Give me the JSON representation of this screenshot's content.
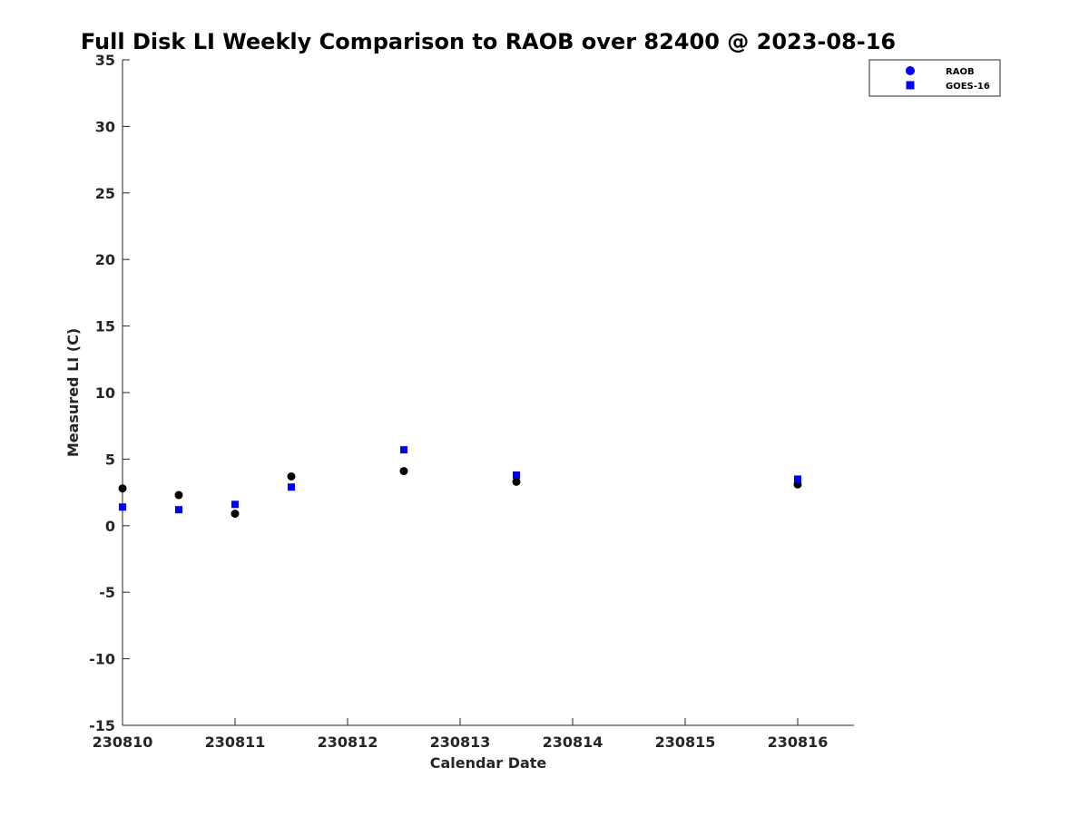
{
  "chart_data": {
    "type": "scatter",
    "title": "Full Disk LI Weekly Comparison to RAOB over 82400 @ 2023-08-16",
    "xlabel": "Calendar Date",
    "ylabel": "Measured LI (C)",
    "xlim": [
      230810,
      230816.5
    ],
    "ylim": [
      -15,
      35
    ],
    "x_ticks": [
      230810,
      230811,
      230812,
      230813,
      230814,
      230815,
      230816
    ],
    "x_tick_labels": [
      "230810",
      "230811",
      "230812",
      "230813",
      "230814",
      "230815",
      "230816"
    ],
    "y_ticks": [
      -15,
      -10,
      -5,
      0,
      5,
      10,
      15,
      20,
      25,
      30,
      35
    ],
    "y_tick_labels": [
      "-15",
      "-10",
      "-5",
      "0",
      "5",
      "10",
      "15",
      "20",
      "25",
      "30",
      "35"
    ],
    "grid": false,
    "legend_position": "top-right",
    "series": [
      {
        "name": "RAOB",
        "marker": "circle",
        "color": "#000000",
        "legend_color": "#0000ff",
        "x": [
          230810,
          230810.5,
          230811,
          230811.5,
          230812.5,
          230813.5,
          230816
        ],
        "y": [
          2.8,
          2.3,
          0.9,
          3.7,
          4.1,
          3.3,
          3.1
        ]
      },
      {
        "name": "GOES-16",
        "marker": "square",
        "color": "#0000ff",
        "legend_color": "#0000ff",
        "x": [
          230810,
          230810.5,
          230811,
          230811.5,
          230812.5,
          230813.5,
          230816
        ],
        "y": [
          1.4,
          1.2,
          1.6,
          2.9,
          5.7,
          3.8,
          3.5
        ]
      }
    ]
  }
}
